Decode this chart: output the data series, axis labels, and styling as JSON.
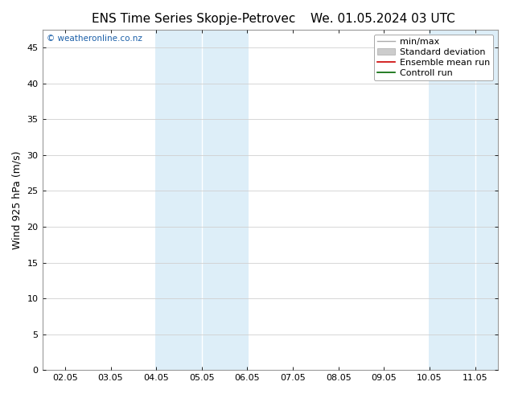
{
  "title_left": "ENS Time Series Skopje-Petrovec",
  "title_right": "We. 01.05.2024 03 UTC",
  "ylabel": "Wind 925 hPa (m/s)",
  "watermark": "© weatheronline.co.nz",
  "ylim": [
    0,
    47.5
  ],
  "yticks": [
    0,
    5,
    10,
    15,
    20,
    25,
    30,
    35,
    40,
    45
  ],
  "xtick_labels": [
    "02.05",
    "03.05",
    "04.05",
    "05.05",
    "06.05",
    "07.05",
    "08.05",
    "09.05",
    "10.05",
    "11.05"
  ],
  "xtick_positions": [
    0,
    1,
    2,
    3,
    4,
    5,
    6,
    7,
    8,
    9
  ],
  "xmin": -0.5,
  "xmax": 9.5,
  "shade_bands": [
    {
      "xmin": 1.95,
      "xmax": 3.05,
      "color": "#ddeef8"
    },
    {
      "xmin": 3.05,
      "xmax": 4.05,
      "color": "#ddeef8"
    },
    {
      "xmin": 7.95,
      "xmax": 9.05,
      "color": "#ddeef8"
    },
    {
      "xmin": 9.05,
      "xmax": 9.5,
      "color": "#ddeef8"
    }
  ],
  "shade_separators": [
    3.05,
    9.05
  ],
  "legend_items": [
    {
      "label": "min/max",
      "color": "#aaaaaa",
      "lw": 1.0,
      "ls": "-",
      "type": "line"
    },
    {
      "label": "Standard deviation",
      "color": "#cccccc",
      "lw": 8,
      "ls": "-",
      "type": "bar"
    },
    {
      "label": "Ensemble mean run",
      "color": "#cc0000",
      "lw": 1.2,
      "ls": "-",
      "type": "line"
    },
    {
      "label": "Controll run",
      "color": "#006600",
      "lw": 1.2,
      "ls": "-",
      "type": "line"
    }
  ],
  "bg_color": "#ffffff",
  "plot_bg_color": "#ffffff",
  "grid_color": "#d0d0d0",
  "title_fontsize": 11,
  "ylabel_fontsize": 9,
  "tick_fontsize": 8,
  "watermark_color": "#1a5fa8",
  "border_color": "#999999",
  "legend_fontsize": 8
}
